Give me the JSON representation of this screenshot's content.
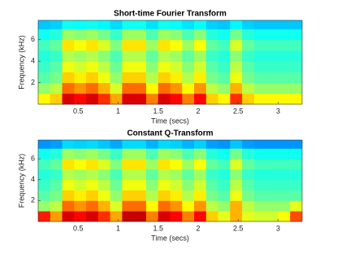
{
  "chart_data": [
    {
      "type": "heatmap",
      "title": "Short-time Fourier Transform",
      "xlabel": "Time (secs)",
      "ylabel": "Frequency (kHz)",
      "colormap": "jet",
      "clim": [
        0,
        1
      ],
      "x": [
        0,
        0.15,
        0.3,
        0.45,
        0.6,
        0.75,
        0.9,
        1.05,
        1.2,
        1.35,
        1.5,
        1.65,
        1.8,
        1.95,
        2.1,
        2.25,
        2.4,
        2.55,
        2.7,
        2.85,
        3,
        3.15,
        3.3
      ],
      "y": [
        0,
        1,
        2,
        3,
        4,
        5,
        6,
        7,
        7.8
      ],
      "z": [
        [
          0.63,
          0.67,
          0.91,
          0.87,
          0.91,
          0.83,
          0.71,
          0.91,
          0.91,
          0.75,
          0.91,
          0.87,
          0.75,
          0.87,
          0.67,
          0.63,
          0.83,
          0.67,
          0.63,
          0.63,
          0.63,
          0.63
        ],
        [
          0.52,
          0.56,
          0.77,
          0.73,
          0.77,
          0.7,
          0.59,
          0.77,
          0.77,
          0.63,
          0.77,
          0.73,
          0.63,
          0.73,
          0.56,
          0.52,
          0.7,
          0.56,
          0.52,
          0.52,
          0.52,
          0.52
        ],
        [
          0.46,
          0.49,
          0.67,
          0.64,
          0.67,
          0.61,
          0.52,
          0.67,
          0.67,
          0.55,
          0.67,
          0.64,
          0.55,
          0.64,
          0.49,
          0.46,
          0.61,
          0.49,
          0.46,
          0.46,
          0.46,
          0.46
        ],
        [
          0.43,
          0.46,
          0.61,
          0.58,
          0.61,
          0.56,
          0.48,
          0.61,
          0.61,
          0.51,
          0.61,
          0.58,
          0.51,
          0.58,
          0.46,
          0.43,
          0.56,
          0.46,
          0.43,
          0.43,
          0.43,
          0.43
        ],
        [
          0.41,
          0.43,
          0.55,
          0.53,
          0.55,
          0.51,
          0.45,
          0.55,
          0.55,
          0.47,
          0.55,
          0.53,
          0.47,
          0.53,
          0.43,
          0.41,
          0.51,
          0.43,
          0.41,
          0.41,
          0.41,
          0.41
        ],
        [
          0.44,
          0.47,
          0.65,
          0.62,
          0.65,
          0.59,
          0.5,
          0.65,
          0.65,
          0.53,
          0.65,
          0.62,
          0.53,
          0.62,
          0.47,
          0.44,
          0.59,
          0.47,
          0.44,
          0.44,
          0.44,
          0.44
        ],
        [
          0.39,
          0.41,
          0.53,
          0.51,
          0.53,
          0.49,
          0.43,
          0.53,
          0.53,
          0.45,
          0.53,
          0.51,
          0.45,
          0.51,
          0.41,
          0.39,
          0.49,
          0.41,
          0.39,
          0.39,
          0.39,
          0.39
        ],
        [
          0.32,
          0.33,
          0.39,
          0.38,
          0.39,
          0.37,
          0.34,
          0.39,
          0.39,
          0.35,
          0.39,
          0.38,
          0.35,
          0.38,
          0.33,
          0.32,
          0.37,
          0.33,
          0.32,
          0.32,
          0.32,
          0.32
        ]
      ],
      "xlim": [
        0,
        3.3
      ],
      "ylim": [
        0,
        7.8
      ],
      "xticks": [
        0.5,
        1,
        1.5,
        2,
        2.5,
        3
      ],
      "yticks": [
        2,
        4,
        6
      ]
    },
    {
      "type": "heatmap",
      "title": "Constant Q-Transform",
      "xlabel": "Time (secs)",
      "ylabel": "Frequency (kHz)",
      "colormap": "jet",
      "clim": [
        0,
        1
      ],
      "x": [
        0,
        0.15,
        0.3,
        0.45,
        0.6,
        0.75,
        0.9,
        1.05,
        1.2,
        1.35,
        1.5,
        1.65,
        1.8,
        1.95,
        2.1,
        2.25,
        2.4,
        2.55,
        2.7,
        2.85,
        3,
        3.15,
        3.3
      ],
      "y": [
        0,
        1,
        2,
        3,
        4,
        5,
        6,
        7,
        7.8
      ],
      "z": [
        [
          0.85,
          0.72,
          0.91,
          0.87,
          0.91,
          0.83,
          0.71,
          0.93,
          0.93,
          0.75,
          0.91,
          0.87,
          0.75,
          0.87,
          0.67,
          0.6,
          0.7,
          0.6,
          0.58,
          0.58,
          0.62,
          0.8
        ],
        [
          0.52,
          0.56,
          0.77,
          0.73,
          0.77,
          0.7,
          0.59,
          0.77,
          0.77,
          0.63,
          0.77,
          0.73,
          0.63,
          0.73,
          0.56,
          0.52,
          0.7,
          0.56,
          0.52,
          0.52,
          0.52,
          0.6
        ],
        [
          0.46,
          0.49,
          0.67,
          0.64,
          0.67,
          0.61,
          0.52,
          0.67,
          0.67,
          0.55,
          0.67,
          0.64,
          0.55,
          0.64,
          0.49,
          0.46,
          0.61,
          0.49,
          0.46,
          0.46,
          0.46,
          0.46
        ],
        [
          0.43,
          0.46,
          0.61,
          0.58,
          0.61,
          0.56,
          0.48,
          0.61,
          0.61,
          0.51,
          0.61,
          0.58,
          0.51,
          0.58,
          0.46,
          0.43,
          0.56,
          0.46,
          0.43,
          0.43,
          0.43,
          0.43
        ],
        [
          0.41,
          0.43,
          0.55,
          0.53,
          0.55,
          0.51,
          0.45,
          0.55,
          0.55,
          0.47,
          0.55,
          0.53,
          0.47,
          0.53,
          0.43,
          0.41,
          0.51,
          0.43,
          0.41,
          0.41,
          0.41,
          0.41
        ],
        [
          0.44,
          0.47,
          0.65,
          0.62,
          0.65,
          0.59,
          0.5,
          0.65,
          0.65,
          0.53,
          0.65,
          0.62,
          0.53,
          0.62,
          0.47,
          0.44,
          0.59,
          0.47,
          0.44,
          0.44,
          0.44,
          0.44
        ],
        [
          0.39,
          0.41,
          0.53,
          0.51,
          0.53,
          0.49,
          0.43,
          0.53,
          0.53,
          0.45,
          0.53,
          0.51,
          0.45,
          0.51,
          0.41,
          0.39,
          0.49,
          0.41,
          0.39,
          0.39,
          0.39,
          0.39
        ],
        [
          0.27,
          0.28,
          0.34,
          0.33,
          0.34,
          0.32,
          0.29,
          0.34,
          0.34,
          0.3,
          0.34,
          0.33,
          0.3,
          0.33,
          0.28,
          0.27,
          0.32,
          0.28,
          0.27,
          0.27,
          0.27,
          0.27
        ]
      ],
      "xlim": [
        0,
        3.3
      ],
      "ylim": [
        0,
        7.8
      ],
      "xticks": [
        0.5,
        1,
        1.5,
        2,
        2.5,
        3
      ],
      "yticks": [
        2,
        4,
        6
      ]
    }
  ]
}
